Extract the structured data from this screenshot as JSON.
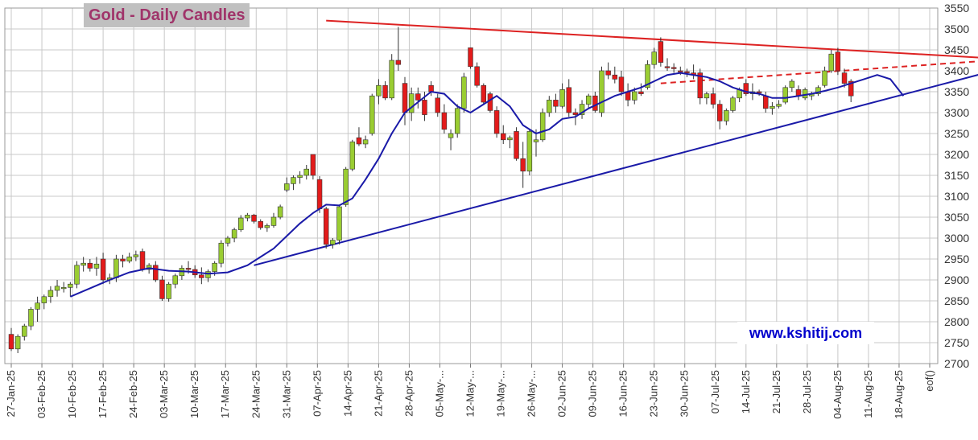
{
  "title": "Gold - Daily Candles",
  "watermark": "www.kshitij.com",
  "chart_data": {
    "type": "candlestick",
    "title": "Gold - Daily Candles",
    "ylim": [
      2700,
      3550
    ],
    "y_ticks": [
      2700,
      2750,
      2800,
      2850,
      2900,
      2950,
      3000,
      3050,
      3100,
      3150,
      3200,
      3250,
      3300,
      3350,
      3400,
      3450,
      3500,
      3550
    ],
    "x_ticks": [
      "27-Jan-25",
      "03-Feb-25",
      "10-Feb-25",
      "17-Feb-25",
      "24-Feb-25",
      "03-Mar-25",
      "10-Mar-25",
      "17-Mar-25",
      "24-Mar-25",
      "31-Mar-25",
      "07-Apr-25",
      "14-Apr-25",
      "21-Apr-25",
      "28-Apr-25",
      "05-May-...",
      "12-May-...",
      "19-May-...",
      "26-May-...",
      "02-Jun-25",
      "09-Jun-25",
      "16-Jun-25",
      "23-Jun-25",
      "30-Jun-25",
      "07-Jul-25",
      "14-Jul-25",
      "21-Jul-25",
      "28-Jul-25",
      "04-Aug-25",
      "11-Aug-25",
      "18-Aug-25",
      "eof()"
    ],
    "grid": true,
    "colors": {
      "up": "#9acd32",
      "down": "#e31b1b",
      "ma": "#1a1aa8",
      "resistance": "#dd2222",
      "support": "#1a1aa8"
    },
    "candles": [
      [
        2770,
        2785,
        2730,
        2735
      ],
      [
        2735,
        2770,
        2725,
        2765
      ],
      [
        2765,
        2795,
        2755,
        2790
      ],
      [
        2790,
        2835,
        2780,
        2830
      ],
      [
        2830,
        2860,
        2800,
        2845
      ],
      [
        2845,
        2865,
        2830,
        2860
      ],
      [
        2860,
        2885,
        2845,
        2875
      ],
      [
        2875,
        2900,
        2860,
        2885
      ],
      [
        2880,
        2895,
        2870,
        2882
      ],
      [
        2882,
        2895,
        2860,
        2890
      ],
      [
        2890,
        2945,
        2880,
        2935
      ],
      [
        2935,
        2955,
        2920,
        2940
      ],
      [
        2940,
        2950,
        2920,
        2928
      ],
      [
        2928,
        2955,
        2910,
        2938
      ],
      [
        2950,
        2965,
        2890,
        2900
      ],
      [
        2900,
        2915,
        2890,
        2905
      ],
      [
        2905,
        2960,
        2895,
        2950
      ],
      [
        2950,
        2960,
        2930,
        2945
      ],
      [
        2945,
        2965,
        2940,
        2955
      ],
      [
        2955,
        2970,
        2945,
        2960
      ],
      [
        2968,
        2975,
        2920,
        2925
      ],
      [
        2925,
        2940,
        2915,
        2935
      ],
      [
        2935,
        2945,
        2895,
        2900
      ],
      [
        2900,
        2910,
        2850,
        2855
      ],
      [
        2855,
        2895,
        2848,
        2890
      ],
      [
        2890,
        2915,
        2880,
        2910
      ],
      [
        2910,
        2935,
        2900,
        2928
      ],
      [
        2928,
        2945,
        2915,
        2925
      ],
      [
        2925,
        2935,
        2905,
        2912
      ],
      [
        2912,
        2930,
        2890,
        2905
      ],
      [
        2905,
        2925,
        2895,
        2920
      ],
      [
        2920,
        2945,
        2910,
        2940
      ],
      [
        2940,
        2995,
        2930,
        2988
      ],
      [
        2988,
        3005,
        2980,
        3000
      ],
      [
        3000,
        3025,
        2990,
        3020
      ],
      [
        3020,
        3055,
        3015,
        3048
      ],
      [
        3048,
        3060,
        3040,
        3055
      ],
      [
        3055,
        3058,
        3035,
        3040
      ],
      [
        3040,
        3045,
        3020,
        3025
      ],
      [
        3025,
        3035,
        3015,
        3030
      ],
      [
        3030,
        3060,
        3025,
        3050
      ],
      [
        3050,
        3080,
        3045,
        3075
      ],
      [
        3115,
        3145,
        3110,
        3130
      ],
      [
        3130,
        3150,
        3115,
        3145
      ],
      [
        3145,
        3160,
        3130,
        3150
      ],
      [
        3150,
        3175,
        3140,
        3165
      ],
      [
        3200,
        3200,
        3140,
        3150
      ],
      [
        3140,
        3148,
        3060,
        3070
      ],
      [
        3070,
        3075,
        2975,
        2985
      ],
      [
        2985,
        3000,
        2975,
        2995
      ],
      [
        2995,
        3080,
        2985,
        3075
      ],
      [
        3080,
        3170,
        3075,
        3165
      ],
      [
        3165,
        3235,
        3160,
        3230
      ],
      [
        3240,
        3265,
        3220,
        3225
      ],
      [
        3225,
        3245,
        3215,
        3235
      ],
      [
        3250,
        3345,
        3245,
        3340
      ],
      [
        3340,
        3380,
        3320,
        3365
      ],
      [
        3365,
        3375,
        3330,
        3335
      ],
      [
        3335,
        3440,
        3330,
        3425
      ],
      [
        3425,
        3505,
        3400,
        3415
      ],
      [
        3370,
        3385,
        3270,
        3300
      ],
      [
        3300,
        3360,
        3280,
        3345
      ],
      [
        3345,
        3360,
        3310,
        3330
      ],
      [
        3330,
        3350,
        3280,
        3295
      ],
      [
        3365,
        3375,
        3340,
        3350
      ],
      [
        3335,
        3345,
        3290,
        3300
      ],
      [
        3300,
        3320,
        3250,
        3260
      ],
      [
        3240,
        3260,
        3210,
        3250
      ],
      [
        3250,
        3320,
        3240,
        3310
      ],
      [
        3310,
        3395,
        3300,
        3385
      ],
      [
        3455,
        3455,
        3405,
        3410
      ],
      [
        3410,
        3420,
        3360,
        3365
      ],
      [
        3365,
        3370,
        3320,
        3325
      ],
      [
        3345,
        3350,
        3300,
        3305
      ],
      [
        3305,
        3315,
        3240,
        3250
      ],
      [
        3250,
        3270,
        3225,
        3235
      ],
      [
        3235,
        3245,
        3215,
        3240
      ],
      [
        3255,
        3265,
        3185,
        3190
      ],
      [
        3190,
        3230,
        3120,
        3160
      ],
      [
        3160,
        3260,
        3150,
        3255
      ],
      [
        3230,
        3260,
        3195,
        3235
      ],
      [
        3235,
        3310,
        3230,
        3300
      ],
      [
        3300,
        3340,
        3290,
        3330
      ],
      [
        3330,
        3345,
        3300,
        3315
      ],
      [
        3315,
        3370,
        3310,
        3355
      ],
      [
        3360,
        3380,
        3290,
        3300
      ],
      [
        3300,
        3310,
        3270,
        3295
      ],
      [
        3295,
        3330,
        3285,
        3320
      ],
      [
        3320,
        3345,
        3310,
        3340
      ],
      [
        3340,
        3350,
        3300,
        3305
      ],
      [
        3300,
        3410,
        3290,
        3400
      ],
      [
        3400,
        3420,
        3380,
        3390
      ],
      [
        3390,
        3410,
        3370,
        3380
      ],
      [
        3385,
        3400,
        3340,
        3350
      ],
      [
        3350,
        3370,
        3315,
        3330
      ],
      [
        3330,
        3360,
        3320,
        3350
      ],
      [
        3350,
        3370,
        3340,
        3345
      ],
      [
        3360,
        3425,
        3355,
        3415
      ],
      [
        3415,
        3455,
        3405,
        3445
      ],
      [
        3470,
        3480,
        3410,
        3420
      ],
      [
        3410,
        3430,
        3400,
        3408
      ],
      [
        3408,
        3418,
        3395,
        3405
      ],
      [
        3400,
        3410,
        3390,
        3398
      ],
      [
        3398,
        3405,
        3385,
        3395
      ],
      [
        3395,
        3415,
        3380,
        3390
      ],
      [
        3395,
        3405,
        3320,
        3335
      ],
      [
        3335,
        3350,
        3320,
        3345
      ],
      [
        3345,
        3360,
        3310,
        3320
      ],
      [
        3320,
        3330,
        3260,
        3280
      ],
      [
        3280,
        3310,
        3270,
        3305
      ],
      [
        3305,
        3340,
        3300,
        3335
      ],
      [
        3335,
        3360,
        3325,
        3355
      ],
      [
        3370,
        3380,
        3340,
        3345
      ],
      [
        3345,
        3370,
        3330,
        3350
      ],
      [
        3350,
        3355,
        3340,
        3348
      ],
      [
        3340,
        3350,
        3300,
        3310
      ],
      [
        3310,
        3325,
        3295,
        3315
      ],
      [
        3315,
        3330,
        3310,
        3320
      ],
      [
        3325,
        3365,
        3320,
        3360
      ],
      [
        3360,
        3380,
        3350,
        3375
      ],
      [
        3355,
        3365,
        3330,
        3340
      ],
      [
        3335,
        3360,
        3330,
        3355
      ],
      [
        3340,
        3350,
        3330,
        3345
      ],
      [
        3345,
        3365,
        3340,
        3360
      ],
      [
        3365,
        3410,
        3360,
        3400
      ],
      [
        3400,
        3450,
        3395,
        3440
      ],
      [
        3445,
        3455,
        3390,
        3400
      ],
      [
        3395,
        3405,
        3360,
        3370
      ],
      [
        3375,
        3380,
        3325,
        3340
      ]
    ],
    "moving_average": [
      [
        9,
        2860
      ],
      [
        12,
        2880
      ],
      [
        15,
        2900
      ],
      [
        18,
        2918
      ],
      [
        21,
        2928
      ],
      [
        24,
        2922
      ],
      [
        27,
        2920
      ],
      [
        30,
        2915
      ],
      [
        33,
        2918
      ],
      [
        36,
        2935
      ],
      [
        38,
        2955
      ],
      [
        40,
        2975
      ],
      [
        42,
        3005
      ],
      [
        44,
        3035
      ],
      [
        46,
        3060
      ],
      [
        48,
        3080
      ],
      [
        50,
        3078
      ],
      [
        52,
        3095
      ],
      [
        54,
        3140
      ],
      [
        56,
        3190
      ],
      [
        58,
        3250
      ],
      [
        60,
        3300
      ],
      [
        62,
        3325
      ],
      [
        64,
        3350
      ],
      [
        66,
        3345
      ],
      [
        68,
        3315
      ],
      [
        70,
        3300
      ],
      [
        72,
        3320
      ],
      [
        74,
        3340
      ],
      [
        76,
        3315
      ],
      [
        78,
        3270
      ],
      [
        80,
        3250
      ],
      [
        82,
        3260
      ],
      [
        84,
        3285
      ],
      [
        86,
        3290
      ],
      [
        88,
        3310
      ],
      [
        90,
        3325
      ],
      [
        92,
        3340
      ],
      [
        94,
        3350
      ],
      [
        96,
        3360
      ],
      [
        98,
        3375
      ],
      [
        100,
        3390
      ],
      [
        102,
        3395
      ],
      [
        104,
        3390
      ],
      [
        106,
        3385
      ],
      [
        108,
        3375
      ],
      [
        110,
        3360
      ],
      [
        112,
        3350
      ],
      [
        114,
        3345
      ],
      [
        116,
        3335
      ],
      [
        118,
        3335
      ],
      [
        120,
        3340
      ],
      [
        122,
        3345
      ],
      [
        124,
        3352
      ],
      [
        126,
        3360
      ],
      [
        128,
        3370
      ],
      [
        130,
        3380
      ],
      [
        132,
        3390
      ],
      [
        134,
        3380
      ],
      [
        136,
        3340
      ]
    ],
    "trendlines": [
      {
        "name": "resistance",
        "points": [
          [
            48,
            3520
          ],
          [
            155,
            3425
          ]
        ]
      },
      {
        "name": "support",
        "points": [
          [
            37,
            2935
          ],
          [
            157,
            3430
          ]
        ]
      },
      {
        "name": "resistance-projection",
        "dashed": true,
        "points": [
          [
            99,
            3370
          ],
          [
            157,
            3433
          ]
        ]
      }
    ]
  }
}
